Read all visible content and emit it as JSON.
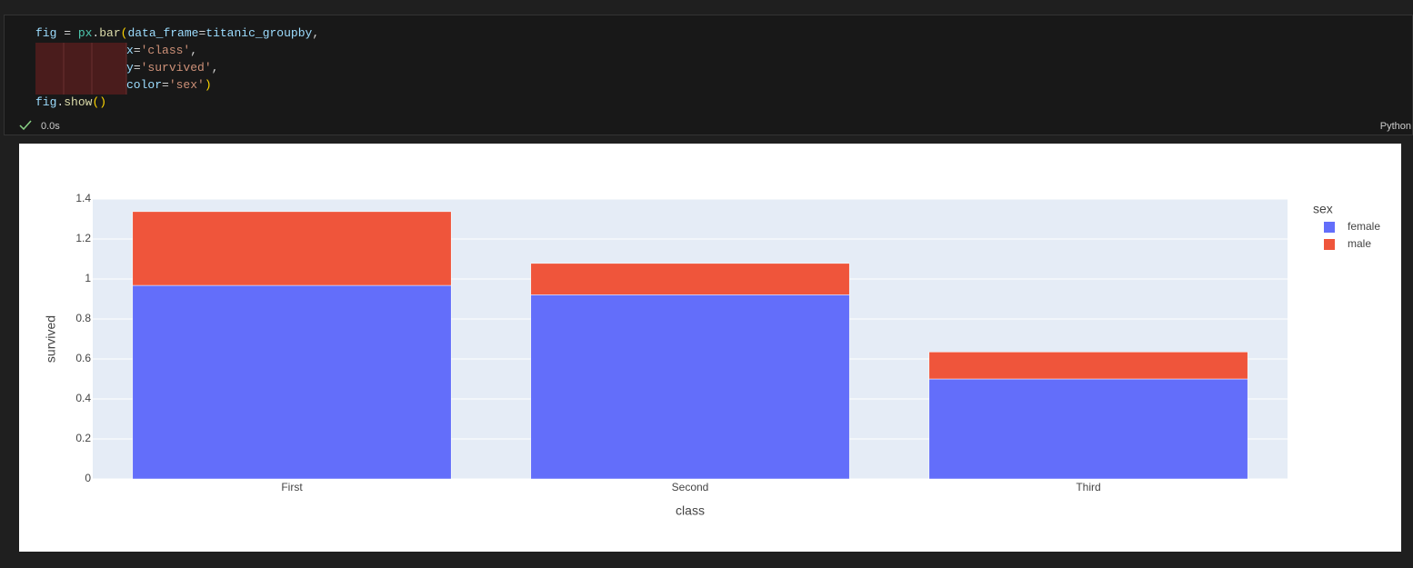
{
  "code": [
    [
      "fig",
      " = ",
      "px",
      ".",
      "bar",
      "(",
      "data_frame",
      "=",
      "titanic_groupby",
      ","
    ],
    [
      "x",
      "=",
      "'class'",
      ","
    ],
    [
      "y",
      "=",
      "'survived'",
      ","
    ],
    [
      "color",
      "=",
      "'sex'",
      ")"
    ],
    [
      "fig",
      ".",
      "show",
      "()"
    ]
  ],
  "status": {
    "time": "0.0s"
  },
  "language": "Python",
  "chart_data": {
    "type": "bar",
    "stacked": true,
    "categories": [
      "First",
      "Second",
      "Third"
    ],
    "xlabel": "class",
    "ylabel": "survived",
    "legend_title": "sex",
    "legend": "right",
    "series": [
      {
        "name": "female",
        "color": "#636efa",
        "values": [
          0.968,
          0.921,
          0.5
        ]
      },
      {
        "name": "male",
        "color": "#ef553b",
        "values": [
          0.369,
          0.157,
          0.135
        ]
      }
    ],
    "ylim": [
      0,
      1.4
    ],
    "yticks": [
      0,
      0.2,
      0.4,
      0.6,
      0.8,
      1,
      1.2,
      1.4
    ],
    "grid": true
  }
}
